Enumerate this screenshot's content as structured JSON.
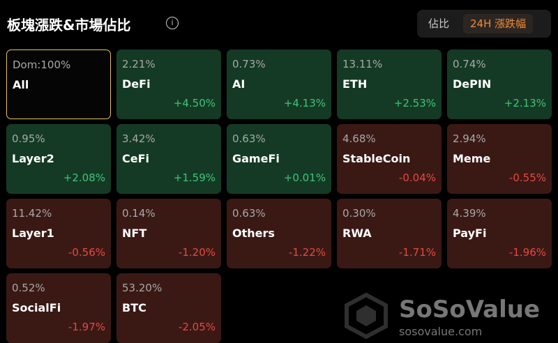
{
  "header": {
    "title": "板塊漲跌&市場佔比",
    "tabs": [
      "佔比",
      "24H 漲跌幅"
    ],
    "active_tab": 1
  },
  "tiles": [
    {
      "share": "Dom:100%",
      "name": "All",
      "selected": true
    },
    {
      "share": "2.21%",
      "name": "DeFi",
      "change": "+4.50%"
    },
    {
      "share": "0.73%",
      "name": "AI",
      "change": "+4.13%"
    },
    {
      "share": "13.11%",
      "name": "ETH",
      "change": "+2.53%"
    },
    {
      "share": "0.74%",
      "name": "DePIN",
      "change": "+2.13%"
    },
    {
      "share": "0.95%",
      "name": "Layer2",
      "change": "+2.08%"
    },
    {
      "share": "3.42%",
      "name": "CeFi",
      "change": "+1.59%"
    },
    {
      "share": "0.63%",
      "name": "GameFi",
      "change": "+0.01%"
    },
    {
      "share": "4.68%",
      "name": "StableCoin",
      "change": "-0.04%"
    },
    {
      "share": "2.94%",
      "name": "Meme",
      "change": "-0.55%"
    },
    {
      "share": "11.42%",
      "name": "Layer1",
      "change": "-0.56%"
    },
    {
      "share": "0.14%",
      "name": "NFT",
      "change": "-1.20%"
    },
    {
      "share": "0.63%",
      "name": "Others",
      "change": "-1.22%"
    },
    {
      "share": "0.30%",
      "name": "RWA",
      "change": "-1.71%"
    },
    {
      "share": "4.39%",
      "name": "PayFi",
      "change": "-1.96%"
    },
    {
      "share": "0.52%",
      "name": "SocialFi",
      "change": "-1.97%"
    },
    {
      "share": "53.20%",
      "name": "BTC",
      "change": "-2.05%"
    }
  ],
  "watermark": {
    "brand": "SoSoValue",
    "url": "sosovalue.com"
  }
}
